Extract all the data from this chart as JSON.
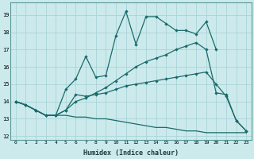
{
  "xlabel": "Humidex (Indice chaleur)",
  "bg_color": "#cceaec",
  "grid_color": "#aad4d8",
  "line_color": "#1a6b6b",
  "xlim": [
    -0.5,
    23.5
  ],
  "ylim": [
    11.8,
    19.7
  ],
  "yticks": [
    12,
    13,
    14,
    15,
    16,
    17,
    18,
    19
  ],
  "xticks": [
    0,
    1,
    2,
    3,
    4,
    5,
    6,
    7,
    8,
    9,
    10,
    11,
    12,
    13,
    14,
    15,
    16,
    17,
    18,
    19,
    20,
    21,
    22,
    23
  ],
  "line1_x": [
    0,
    1,
    2,
    3,
    4,
    5,
    6,
    7,
    8,
    9,
    10,
    11,
    12,
    13,
    14,
    15,
    16,
    17,
    18,
    19,
    20,
    21,
    22,
    23
  ],
  "line1_y": [
    14.0,
    13.8,
    13.5,
    13.2,
    13.2,
    13.2,
    13.1,
    13.1,
    13.0,
    13.0,
    12.9,
    12.8,
    12.7,
    12.6,
    12.5,
    12.5,
    12.4,
    12.3,
    12.3,
    12.2,
    12.2,
    12.2,
    12.2,
    12.2
  ],
  "line2_x": [
    0,
    1,
    2,
    3,
    4,
    5,
    6,
    7,
    8,
    9,
    10,
    11,
    12,
    13,
    14,
    15,
    16,
    17,
    18,
    19,
    20,
    21,
    22,
    23
  ],
  "line2_y": [
    14.0,
    13.8,
    13.5,
    13.2,
    13.2,
    13.5,
    14.4,
    14.3,
    14.4,
    14.5,
    14.7,
    14.9,
    15.0,
    15.1,
    15.2,
    15.3,
    15.4,
    15.5,
    15.6,
    15.7,
    15.0,
    14.3,
    12.9,
    12.3
  ],
  "line3_x": [
    0,
    1,
    2,
    3,
    4,
    5,
    6,
    7,
    8,
    9,
    10,
    11,
    12,
    13,
    14,
    15,
    16,
    17,
    18,
    19,
    20
  ],
  "line3_y": [
    14.0,
    13.8,
    13.5,
    13.2,
    13.2,
    14.7,
    15.3,
    16.6,
    15.4,
    15.5,
    17.8,
    19.2,
    17.3,
    18.9,
    18.9,
    18.5,
    18.1,
    18.1,
    17.9,
    18.6,
    17.0
  ],
  "line4_x": [
    0,
    1,
    2,
    3,
    4,
    5,
    6,
    7,
    8,
    9,
    10,
    11,
    12,
    13,
    14,
    15,
    16,
    17,
    18,
    19,
    20,
    21,
    22,
    23
  ],
  "line4_y": [
    14.0,
    13.8,
    13.5,
    13.2,
    13.2,
    13.5,
    14.0,
    14.2,
    14.5,
    14.8,
    15.2,
    15.6,
    16.0,
    16.3,
    16.5,
    16.7,
    17.0,
    17.2,
    17.4,
    17.0,
    14.5,
    14.4,
    12.9,
    12.3
  ]
}
